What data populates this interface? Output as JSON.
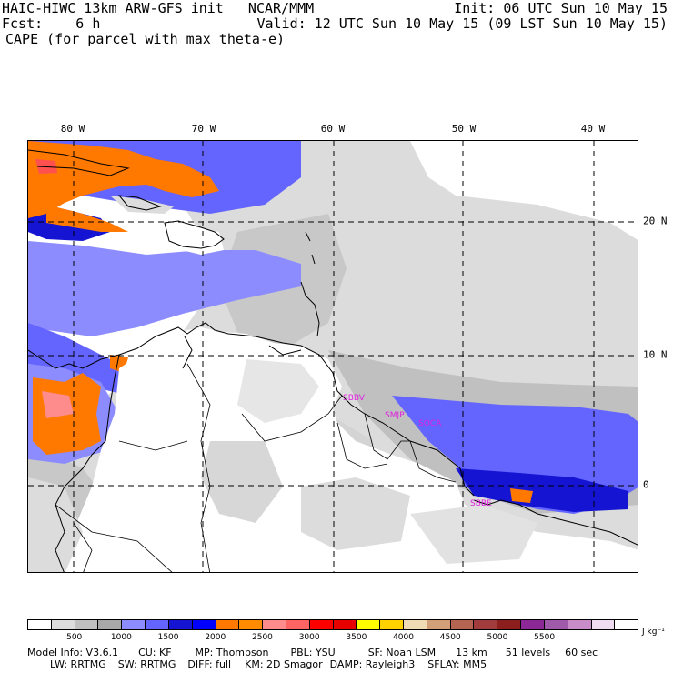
{
  "header": {
    "line1_left": "HAIC-HIWC 13km ARW-GFS init   NCAR/MMM",
    "line1_right": "Init: 06 UTC Sun 10 May 15",
    "line2_left": "Fcst:    6 h",
    "line2_right": "Valid: 12 UTC Sun 10 May 15 (09 LST Sun 10 May 15)",
    "line3": "CAPE (for parcel with max theta-e)"
  },
  "map": {
    "longitude_labels": [
      "80 W",
      "70 W",
      "60 W",
      "50 W",
      "40 W"
    ],
    "latitude_labels": [
      "20 N",
      "10 N",
      "0"
    ],
    "station_labels": [
      "SBBV",
      "SMJP",
      "SOCA",
      "SBBE"
    ]
  },
  "colorbar": {
    "colors": [
      "#ffffff",
      "#dcdcdc",
      "#c0c0c0",
      "#a8a8a8",
      "#8c8cff",
      "#6464ff",
      "#1414d2",
      "#0000ff",
      "#ff7800",
      "#ff8c00",
      "#ff8c8c",
      "#ff6464",
      "#ff0000",
      "#e60000",
      "#ffff00",
      "#ffd200",
      "#f0dcb4",
      "#d2a078",
      "#b46450",
      "#a03c3c",
      "#8c1e1e",
      "#8c2896",
      "#a05aaa",
      "#c88cc8",
      "#f0dcf0",
      "#ffffff"
    ],
    "tick_labels": [
      "500",
      "1000",
      "1500",
      "2000",
      "2500",
      "3000",
      "3500",
      "4000",
      "4500",
      "5000",
      "5500"
    ],
    "units": "J kg⁻¹"
  },
  "footer": {
    "line1": [
      "Model Info: V3.6.1",
      "CU: KF",
      "MP: Thompson",
      "PBL: YSU",
      "SF: Noah LSM",
      "13 km",
      "51 levels",
      "60 sec"
    ],
    "line2": [
      "LW: RRTMG",
      "SW: RRTMG",
      "DIFF: full",
      "KM: 2D Smagor",
      "DAMP: Rayleigh3",
      "SFLAY: MM5"
    ]
  }
}
